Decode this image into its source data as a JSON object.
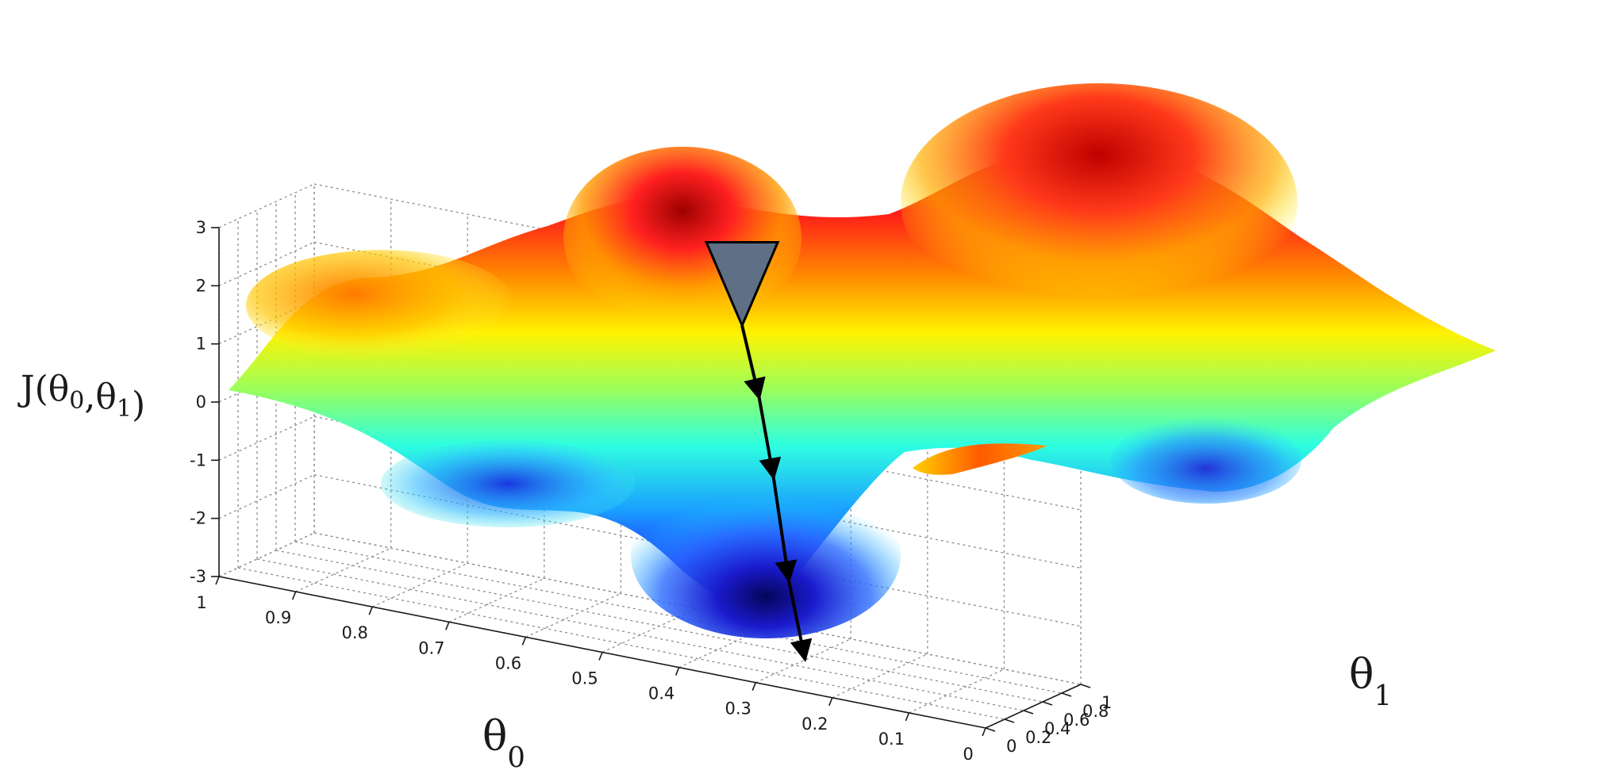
{
  "chart_data": {
    "type": "surface",
    "title": "",
    "xlabel": {
      "base": "θ",
      "sub": "0"
    },
    "ylabel": {
      "base": "θ",
      "sub": "1"
    },
    "zlabel": {
      "text": "J(θ",
      "sub1": "0",
      "mid": ",θ",
      "sub2": "1",
      "end": ")"
    },
    "xlim": [
      0,
      1
    ],
    "ylim": [
      0,
      1
    ],
    "zlim": [
      -3,
      3
    ],
    "x_ticks": [
      "1",
      "0.9",
      "0.8",
      "0.7",
      "0.6",
      "0.5",
      "0.4",
      "0.3",
      "0.2",
      "0.1",
      "0"
    ],
    "y_ticks": [
      "0",
      "0.2",
      "0.4",
      "0.6",
      "0.8",
      "1"
    ],
    "z_ticks": [
      "3",
      "2",
      "1",
      "0",
      "-1",
      "-2",
      "-3"
    ],
    "grid": true,
    "colormap": "jet",
    "surface_peaks": [
      {
        "x": 0.34,
        "y": 0.18,
        "z": 2.2
      },
      {
        "x": 0.78,
        "y": 0.05,
        "z": 1.4
      },
      {
        "x": 0.22,
        "y": 0.82,
        "z": 2.6
      }
    ],
    "surface_valleys": [
      {
        "x": 0.3,
        "y": 0.52,
        "z": -3.0
      },
      {
        "x": 0.15,
        "y": 0.42,
        "z": -2.0
      }
    ],
    "descent_path": {
      "start_marker": "triangle-marker",
      "points": [
        {
          "x": 0.34,
          "y": 0.18,
          "z": 2.9
        },
        {
          "x": 0.33,
          "y": 0.28,
          "z": 1.6
        },
        {
          "x": 0.32,
          "y": 0.35,
          "z": 0.2
        },
        {
          "x": 0.31,
          "y": 0.43,
          "z": -1.6
        },
        {
          "x": 0.3,
          "y": 0.52,
          "z": -3.0
        }
      ]
    },
    "colors": {
      "path": "#000000",
      "marker_fill": "#5e6f86",
      "grid": "#8c8c8c",
      "axis": "#1a1a1a"
    }
  }
}
